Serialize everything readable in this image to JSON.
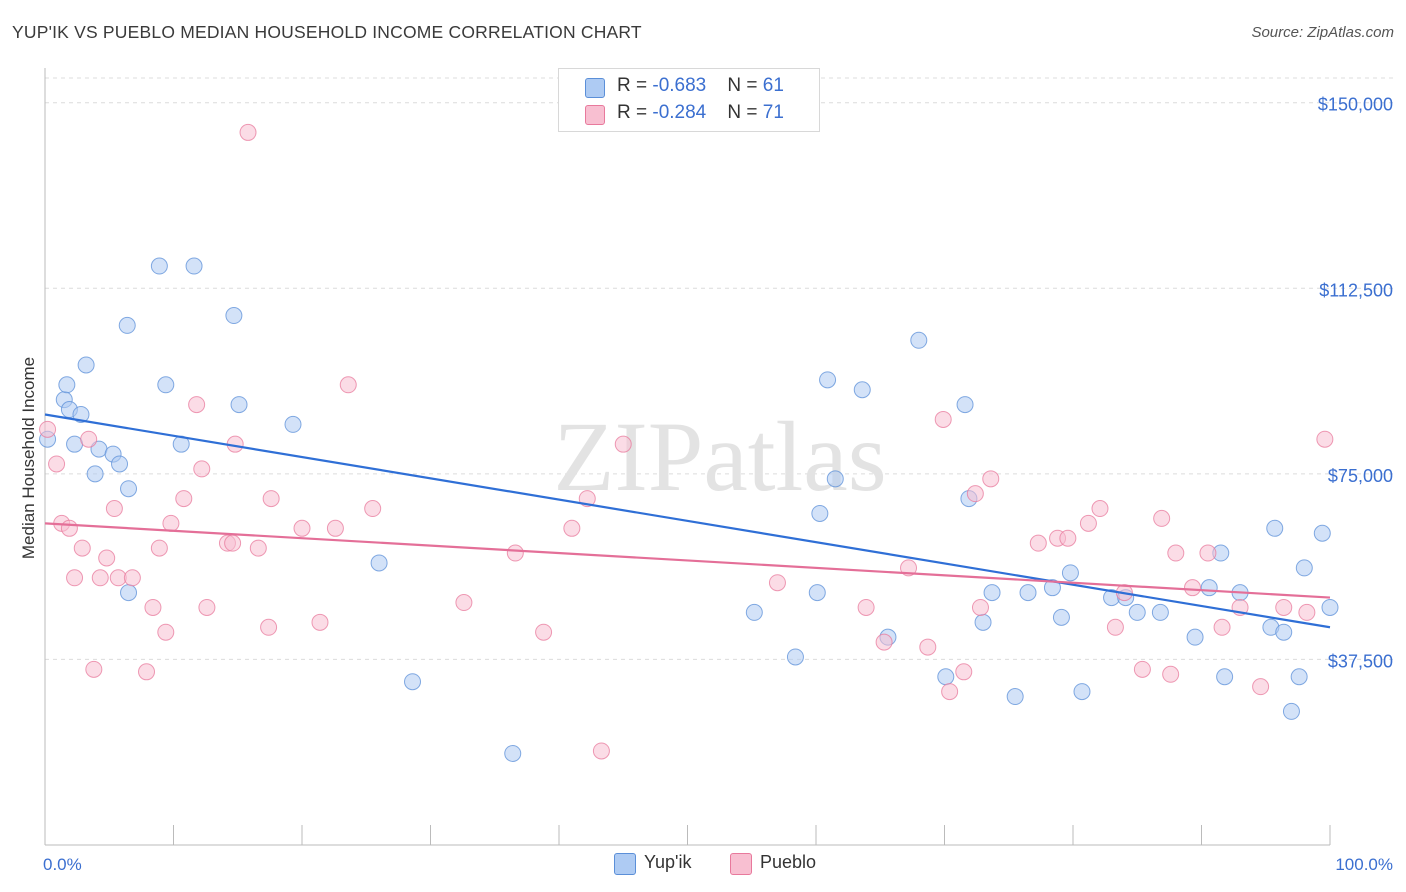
{
  "title": "YUP'IK VS PUEBLO MEDIAN HOUSEHOLD INCOME CORRELATION CHART",
  "source": "Source: ZipAtlas.com",
  "watermark": "ZIPatlas",
  "legend_top": [
    {
      "r_label": "R = ",
      "r_value": "-0.683",
      "n_label": "N = ",
      "n_value": "61",
      "color": "#aecbf3"
    },
    {
      "r_label": "R = ",
      "r_value": "-0.284",
      "n_label": "N = ",
      "n_value": "71",
      "color": "#f8bfd1"
    }
  ],
  "legend_bottom": [
    {
      "label": "Yup'ik",
      "color": "#aecbf3"
    },
    {
      "label": "Pueblo",
      "color": "#f8bfd1"
    }
  ],
  "chart_data": {
    "type": "scatter",
    "title": "YUP'IK VS PUEBLO MEDIAN HOUSEHOLD INCOME CORRELATION CHART",
    "xlabel": "",
    "ylabel": "Median Household Income",
    "xlim": [
      0,
      100
    ],
    "ylim": [
      0,
      155000
    ],
    "x_tick_labels": [
      "0.0%",
      "100.0%"
    ],
    "y_ticks": [
      37500,
      75000,
      112500,
      150000
    ],
    "y_tick_labels": [
      "$37,500",
      "$75,000",
      "$112,500",
      "$150,000"
    ],
    "grid": "horizontal dashed",
    "legend_position": "top-center and bottom",
    "series": [
      {
        "name": "Yup'ik",
        "color": "#5b8fd8",
        "fill": "#aecbf3",
        "trend": {
          "x": [
            0,
            100
          ],
          "y": [
            87000,
            44000
          ]
        },
        "points": [
          [
            0.2,
            82000
          ],
          [
            1.5,
            90000
          ],
          [
            1.7,
            93000
          ],
          [
            1.9,
            88000
          ],
          [
            2.3,
            81000
          ],
          [
            2.8,
            87000
          ],
          [
            3.2,
            97000
          ],
          [
            3.9,
            75000
          ],
          [
            4.2,
            80000
          ],
          [
            5.3,
            79000
          ],
          [
            5.8,
            77000
          ],
          [
            6.4,
            105000
          ],
          [
            6.5,
            51000
          ],
          [
            6.5,
            72000
          ],
          [
            8.9,
            117000
          ],
          [
            9.4,
            93000
          ],
          [
            10.6,
            81000
          ],
          [
            11.6,
            117000
          ],
          [
            14.7,
            107000
          ],
          [
            15.1,
            89000
          ],
          [
            19.3,
            85000
          ],
          [
            26.0,
            57000
          ],
          [
            28.6,
            33000
          ],
          [
            36.4,
            18500
          ],
          [
            55.2,
            47000
          ],
          [
            58.4,
            38000
          ],
          [
            60.1,
            51000
          ],
          [
            60.3,
            67000
          ],
          [
            60.9,
            94000
          ],
          [
            61.5,
            74000
          ],
          [
            63.6,
            92000
          ],
          [
            65.6,
            42000
          ],
          [
            68.0,
            102000
          ],
          [
            70.1,
            34000
          ],
          [
            71.6,
            89000
          ],
          [
            71.9,
            70000
          ],
          [
            73.0,
            45000
          ],
          [
            73.7,
            51000
          ],
          [
            75.5,
            30000
          ],
          [
            76.5,
            51000
          ],
          [
            78.4,
            52000
          ],
          [
            79.1,
            46000
          ],
          [
            79.8,
            55000
          ],
          [
            80.7,
            31000
          ],
          [
            83.0,
            50000
          ],
          [
            84.1,
            50000
          ],
          [
            85.0,
            47000
          ],
          [
            86.8,
            47000
          ],
          [
            89.5,
            42000
          ],
          [
            90.6,
            52000
          ],
          [
            91.5,
            59000
          ],
          [
            91.8,
            34000
          ],
          [
            93.0,
            51000
          ],
          [
            95.4,
            44000
          ],
          [
            95.7,
            64000
          ],
          [
            96.4,
            43000
          ],
          [
            97.0,
            27000
          ],
          [
            97.6,
            34000
          ],
          [
            98.0,
            56000
          ],
          [
            99.4,
            63000
          ],
          [
            100.0,
            48000
          ]
        ]
      },
      {
        "name": "Pueblo",
        "color": "#e8799c",
        "fill": "#f8bfd1",
        "trend": {
          "x": [
            0,
            100
          ],
          "y": [
            65000,
            50000
          ]
        },
        "points": [
          [
            0.2,
            84000
          ],
          [
            0.9,
            77000
          ],
          [
            1.3,
            65000
          ],
          [
            1.9,
            64000
          ],
          [
            2.3,
            54000
          ],
          [
            2.9,
            60000
          ],
          [
            3.4,
            82000
          ],
          [
            3.8,
            35500
          ],
          [
            4.3,
            54000
          ],
          [
            4.8,
            58000
          ],
          [
            5.4,
            68000
          ],
          [
            5.7,
            54000
          ],
          [
            6.8,
            54000
          ],
          [
            7.9,
            35000
          ],
          [
            8.4,
            48000
          ],
          [
            8.9,
            60000
          ],
          [
            9.4,
            43000
          ],
          [
            9.8,
            65000
          ],
          [
            10.8,
            70000
          ],
          [
            11.8,
            89000
          ],
          [
            12.2,
            76000
          ],
          [
            12.6,
            48000
          ],
          [
            14.2,
            61000
          ],
          [
            14.6,
            61000
          ],
          [
            14.8,
            81000
          ],
          [
            15.8,
            144000
          ],
          [
            16.6,
            60000
          ],
          [
            17.4,
            44000
          ],
          [
            17.6,
            70000
          ],
          [
            20.0,
            64000
          ],
          [
            21.4,
            45000
          ],
          [
            22.6,
            64000
          ],
          [
            23.6,
            93000
          ],
          [
            25.5,
            68000
          ],
          [
            32.6,
            49000
          ],
          [
            36.6,
            59000
          ],
          [
            38.8,
            43000
          ],
          [
            41.0,
            64000
          ],
          [
            42.2,
            70000
          ],
          [
            43.3,
            19000
          ],
          [
            45.0,
            81000
          ],
          [
            57.0,
            53000
          ],
          [
            63.9,
            48000
          ],
          [
            65.3,
            41000
          ],
          [
            67.2,
            56000
          ],
          [
            68.7,
            40000
          ],
          [
            69.9,
            86000
          ],
          [
            70.4,
            31000
          ],
          [
            71.5,
            35000
          ],
          [
            72.4,
            71000
          ],
          [
            72.8,
            48000
          ],
          [
            73.6,
            74000
          ],
          [
            77.3,
            61000
          ],
          [
            78.8,
            62000
          ],
          [
            79.6,
            62000
          ],
          [
            81.2,
            65000
          ],
          [
            82.1,
            68000
          ],
          [
            83.3,
            44000
          ],
          [
            84.0,
            51000
          ],
          [
            85.4,
            35500
          ],
          [
            86.9,
            66000
          ],
          [
            87.6,
            34500
          ],
          [
            88.0,
            59000
          ],
          [
            89.3,
            52000
          ],
          [
            90.5,
            59000
          ],
          [
            91.6,
            44000
          ],
          [
            93.0,
            48000
          ],
          [
            94.6,
            32000
          ],
          [
            96.4,
            48000
          ],
          [
            98.2,
            47000
          ],
          [
            99.6,
            82000
          ]
        ]
      }
    ]
  }
}
